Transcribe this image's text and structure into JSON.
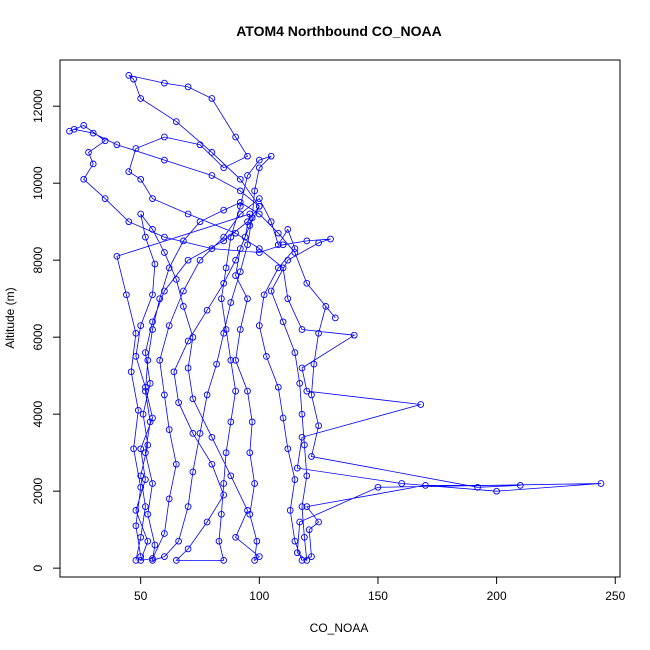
{
  "chart_data": {
    "type": "line",
    "title": "ATOM4 Northbound CO_NOAA",
    "xlabel": "CO_NOAA",
    "ylabel": "Altitude (m)",
    "xlim": [
      16,
      252
    ],
    "ylim": [
      -230,
      13200
    ],
    "xticks": [
      50,
      100,
      150,
      200,
      250
    ],
    "yticks": [
      0,
      2000,
      4000,
      6000,
      8000,
      10000,
      12000
    ],
    "grid": false,
    "legend": "none",
    "color": "#0000ff",
    "series": [
      {
        "values": [
          [
            48,
            200
          ],
          [
            50,
            800
          ],
          [
            52,
            1600
          ],
          [
            50,
            2400
          ],
          [
            53,
            3200
          ],
          [
            51,
            4000
          ],
          [
            54,
            4800
          ],
          [
            52,
            5600
          ],
          [
            55,
            6400
          ],
          [
            60,
            7200
          ],
          [
            70,
            8000
          ],
          [
            85,
            8500
          ],
          [
            95,
            9000
          ],
          [
            100,
            9400
          ],
          [
            92,
            9800
          ],
          [
            80,
            10200
          ],
          [
            60,
            10600
          ],
          [
            40,
            11000
          ],
          [
            30,
            11300
          ],
          [
            22,
            11400
          ],
          [
            20,
            11350
          ],
          [
            26,
            11500
          ],
          [
            35,
            11100
          ],
          [
            28,
            10800
          ],
          [
            30,
            10500
          ],
          [
            26,
            10100
          ],
          [
            35,
            9600
          ],
          [
            45,
            9000
          ],
          [
            60,
            8600
          ],
          [
            80,
            8300
          ],
          [
            100,
            8200
          ],
          [
            110,
            8400
          ],
          [
            120,
            8500
          ],
          [
            130,
            8550
          ],
          [
            125,
            8450
          ],
          [
            112,
            8000
          ],
          [
            105,
            7200
          ],
          [
            110,
            6400
          ],
          [
            115,
            5600
          ],
          [
            117,
            4800
          ],
          [
            118,
            4000
          ],
          [
            119,
            3200
          ],
          [
            120,
            2400
          ],
          [
            118,
            1600
          ],
          [
            119,
            800
          ],
          [
            120,
            200
          ],
          [
            116,
            400
          ],
          [
            117,
            1200
          ],
          [
            150,
            2100
          ],
          [
            244,
            2200
          ],
          [
            200,
            2000
          ],
          [
            160,
            2200
          ],
          [
            116,
            2600
          ],
          [
            118,
            3400
          ],
          [
            168,
            4250
          ],
          [
            120,
            4600
          ],
          [
            118,
            5200
          ],
          [
            140,
            6050
          ],
          [
            118,
            6200
          ],
          [
            112,
            7000
          ],
          [
            110,
            7800
          ],
          [
            100,
            8300
          ],
          [
            90,
            8700
          ],
          [
            70,
            9200
          ],
          [
            55,
            9600
          ],
          [
            50,
            10100
          ],
          [
            45,
            10300
          ],
          [
            48,
            10900
          ],
          [
            60,
            11200
          ],
          [
            75,
            11000
          ],
          [
            85,
            10400
          ],
          [
            95,
            10700
          ],
          [
            90,
            11200
          ],
          [
            80,
            12200
          ],
          [
            70,
            12500
          ],
          [
            60,
            12600
          ],
          [
            45,
            12800
          ],
          [
            47,
            12700
          ],
          [
            50,
            12200
          ],
          [
            65,
            11600
          ],
          [
            80,
            10800
          ],
          [
            92,
            10100
          ],
          [
            100,
            9400
          ],
          [
            96,
            8900
          ],
          [
            92,
            8300
          ],
          [
            90,
            7600
          ],
          [
            95,
            7000
          ],
          [
            92,
            6200
          ],
          [
            90,
            5400
          ],
          [
            95,
            4600
          ],
          [
            97,
            3800
          ],
          [
            96,
            3000
          ],
          [
            98,
            2200
          ],
          [
            96,
            1400
          ],
          [
            99,
            700
          ],
          [
            98,
            200
          ],
          [
            100,
            300
          ],
          [
            90,
            800
          ],
          [
            95,
            1500
          ],
          [
            88,
            2400
          ],
          [
            80,
            3400
          ],
          [
            72,
            4400
          ],
          [
            70,
            5200
          ],
          [
            72,
            6000
          ],
          [
            68,
            6800
          ],
          [
            65,
            7500
          ],
          [
            60,
            8200
          ],
          [
            55,
            8800
          ],
          [
            50,
            9200
          ],
          [
            52,
            8600
          ],
          [
            56,
            7900
          ],
          [
            55,
            7100
          ],
          [
            50,
            6300
          ],
          [
            48,
            5500
          ],
          [
            52,
            4700
          ],
          [
            55,
            3900
          ],
          [
            50,
            3100
          ],
          [
            52,
            2300
          ],
          [
            48,
            1500
          ],
          [
            53,
            700
          ],
          [
            50,
            200
          ],
          [
            55,
            250
          ],
          [
            60,
            900
          ],
          [
            62,
            1800
          ],
          [
            65,
            2700
          ],
          [
            62,
            3600
          ],
          [
            60,
            4500
          ],
          [
            58,
            5400
          ],
          [
            62,
            6300
          ],
          [
            68,
            7200
          ],
          [
            75,
            8000
          ],
          [
            85,
            8600
          ],
          [
            92,
            9200
          ],
          [
            100,
            9600
          ],
          [
            105,
            9000
          ],
          [
            108,
            8400
          ],
          [
            112,
            8800
          ],
          [
            115,
            8300
          ],
          [
            108,
            7800
          ],
          [
            102,
            7100
          ],
          [
            100,
            6300
          ],
          [
            103,
            5500
          ],
          [
            108,
            4700
          ],
          [
            110,
            3900
          ],
          [
            112,
            3100
          ],
          [
            115,
            2300
          ],
          [
            113,
            1500
          ],
          [
            115,
            700
          ],
          [
            118,
            200
          ],
          [
            122,
            300
          ],
          [
            121,
            1000
          ],
          [
            125,
            1200
          ],
          [
            120,
            1600
          ],
          [
            170,
            2150
          ],
          [
            210,
            2150
          ],
          [
            192,
            2100
          ],
          [
            122,
            2900
          ],
          [
            125,
            3700
          ],
          [
            122,
            4500
          ],
          [
            123,
            5300
          ],
          [
            125,
            6100
          ],
          [
            128,
            6800
          ],
          [
            132,
            6500
          ],
          [
            120,
            7400
          ],
          [
            115,
            8200
          ],
          [
            108,
            8700
          ],
          [
            100,
            9200
          ],
          [
            92,
            9500
          ],
          [
            85,
            9300
          ],
          [
            75,
            9000
          ],
          [
            68,
            8500
          ],
          [
            62,
            7800
          ],
          [
            58,
            7000
          ],
          [
            55,
            6200
          ],
          [
            53,
            5400
          ],
          [
            52,
            4600
          ],
          [
            54,
            3800
          ],
          [
            52,
            3000
          ],
          [
            55,
            2200
          ],
          [
            53,
            1400
          ],
          [
            56,
            600
          ],
          [
            55,
            200
          ],
          [
            60,
            300
          ],
          [
            66,
            700
          ],
          [
            70,
            1600
          ],
          [
            72,
            2500
          ],
          [
            75,
            3500
          ],
          [
            78,
            4500
          ],
          [
            82,
            5300
          ],
          [
            85,
            6100
          ],
          [
            88,
            6900
          ],
          [
            92,
            7700
          ],
          [
            95,
            8400
          ],
          [
            97,
            9100
          ],
          [
            98,
            9800
          ],
          [
            100,
            10400
          ],
          [
            105,
            10700
          ],
          [
            100,
            10600
          ],
          [
            95,
            10200
          ],
          [
            92,
            9400
          ],
          [
            88,
            8600
          ],
          [
            86,
            7800
          ],
          [
            84,
            7000
          ],
          [
            86,
            6200
          ],
          [
            88,
            5400
          ],
          [
            90,
            4600
          ],
          [
            88,
            3800
          ],
          [
            86,
            3000
          ],
          [
            85,
            2200
          ],
          [
            84,
            1400
          ],
          [
            83,
            700
          ],
          [
            85,
            200
          ],
          [
            65,
            200
          ],
          [
            70,
            500
          ],
          [
            78,
            1200
          ],
          [
            85,
            1900
          ],
          [
            80,
            2700
          ],
          [
            72,
            3500
          ],
          [
            66,
            4300
          ],
          [
            64,
            5100
          ],
          [
            70,
            5900
          ],
          [
            78,
            6700
          ],
          [
            85,
            7400
          ],
          [
            90,
            8000
          ],
          [
            94,
            8600
          ],
          [
            96,
            9200
          ],
          [
            40,
            8100
          ],
          [
            44,
            7100
          ],
          [
            48,
            6100
          ],
          [
            46,
            5100
          ],
          [
            49,
            4100
          ],
          [
            47,
            3100
          ],
          [
            50,
            2100
          ],
          [
            48,
            1100
          ],
          [
            50,
            300
          ]
        ]
      }
    ]
  }
}
